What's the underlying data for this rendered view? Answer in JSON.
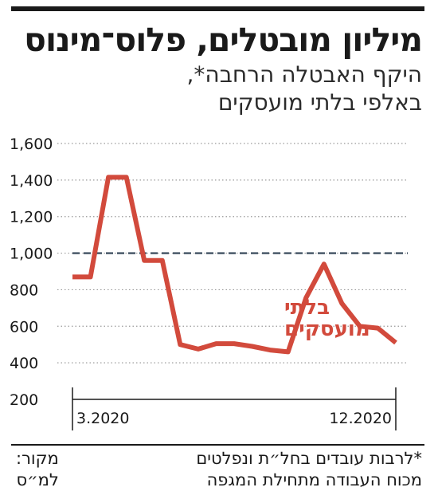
{
  "header": {
    "title": "מיליון מובטלים, פלוס־מינוס",
    "subtitle_line1": "היקף האבטלה הרחבה*,",
    "subtitle_line2": "באלפי בלתי מועסקים"
  },
  "footer": {
    "footnote_line1": "*לרבות עובדים בחל״ת ונפלטים",
    "footnote_line2": "מכוח העבודה מתחילת המגפה",
    "source_label": "מקור:",
    "source_value": "למ״ס"
  },
  "colors": {
    "series": "#d24a3c",
    "reference": "#4a5a6a",
    "grid": "#9a9a9a",
    "text": "#1a1a1a"
  },
  "chart_data": {
    "type": "line",
    "ylim": [
      200,
      1600
    ],
    "yticks": [
      "1,600",
      "1,400",
      "1,200",
      "1,000",
      "800",
      "600",
      "400",
      "200"
    ],
    "ytick_values": [
      1600,
      1400,
      1200,
      1000,
      800,
      600,
      400,
      200
    ],
    "xlim": [
      0,
      18
    ],
    "xticks": [
      {
        "label": "3.2020",
        "x": 0
      },
      {
        "label": "12.2020",
        "x": 18
      }
    ],
    "reference_line": 1000,
    "series": [
      {
        "name": "בלתי מועסקים",
        "label_line1": "בלתי",
        "label_line2": "מועסקים",
        "x": [
          0,
          1,
          2,
          3,
          4,
          5,
          6,
          7,
          8,
          9,
          10,
          11,
          12,
          13,
          14,
          15,
          16,
          17,
          18
        ],
        "values": [
          870,
          870,
          1415,
          1415,
          960,
          960,
          500,
          475,
          505,
          505,
          490,
          470,
          460,
          755,
          940,
          725,
          600,
          590,
          510
        ]
      }
    ],
    "grid": true
  }
}
